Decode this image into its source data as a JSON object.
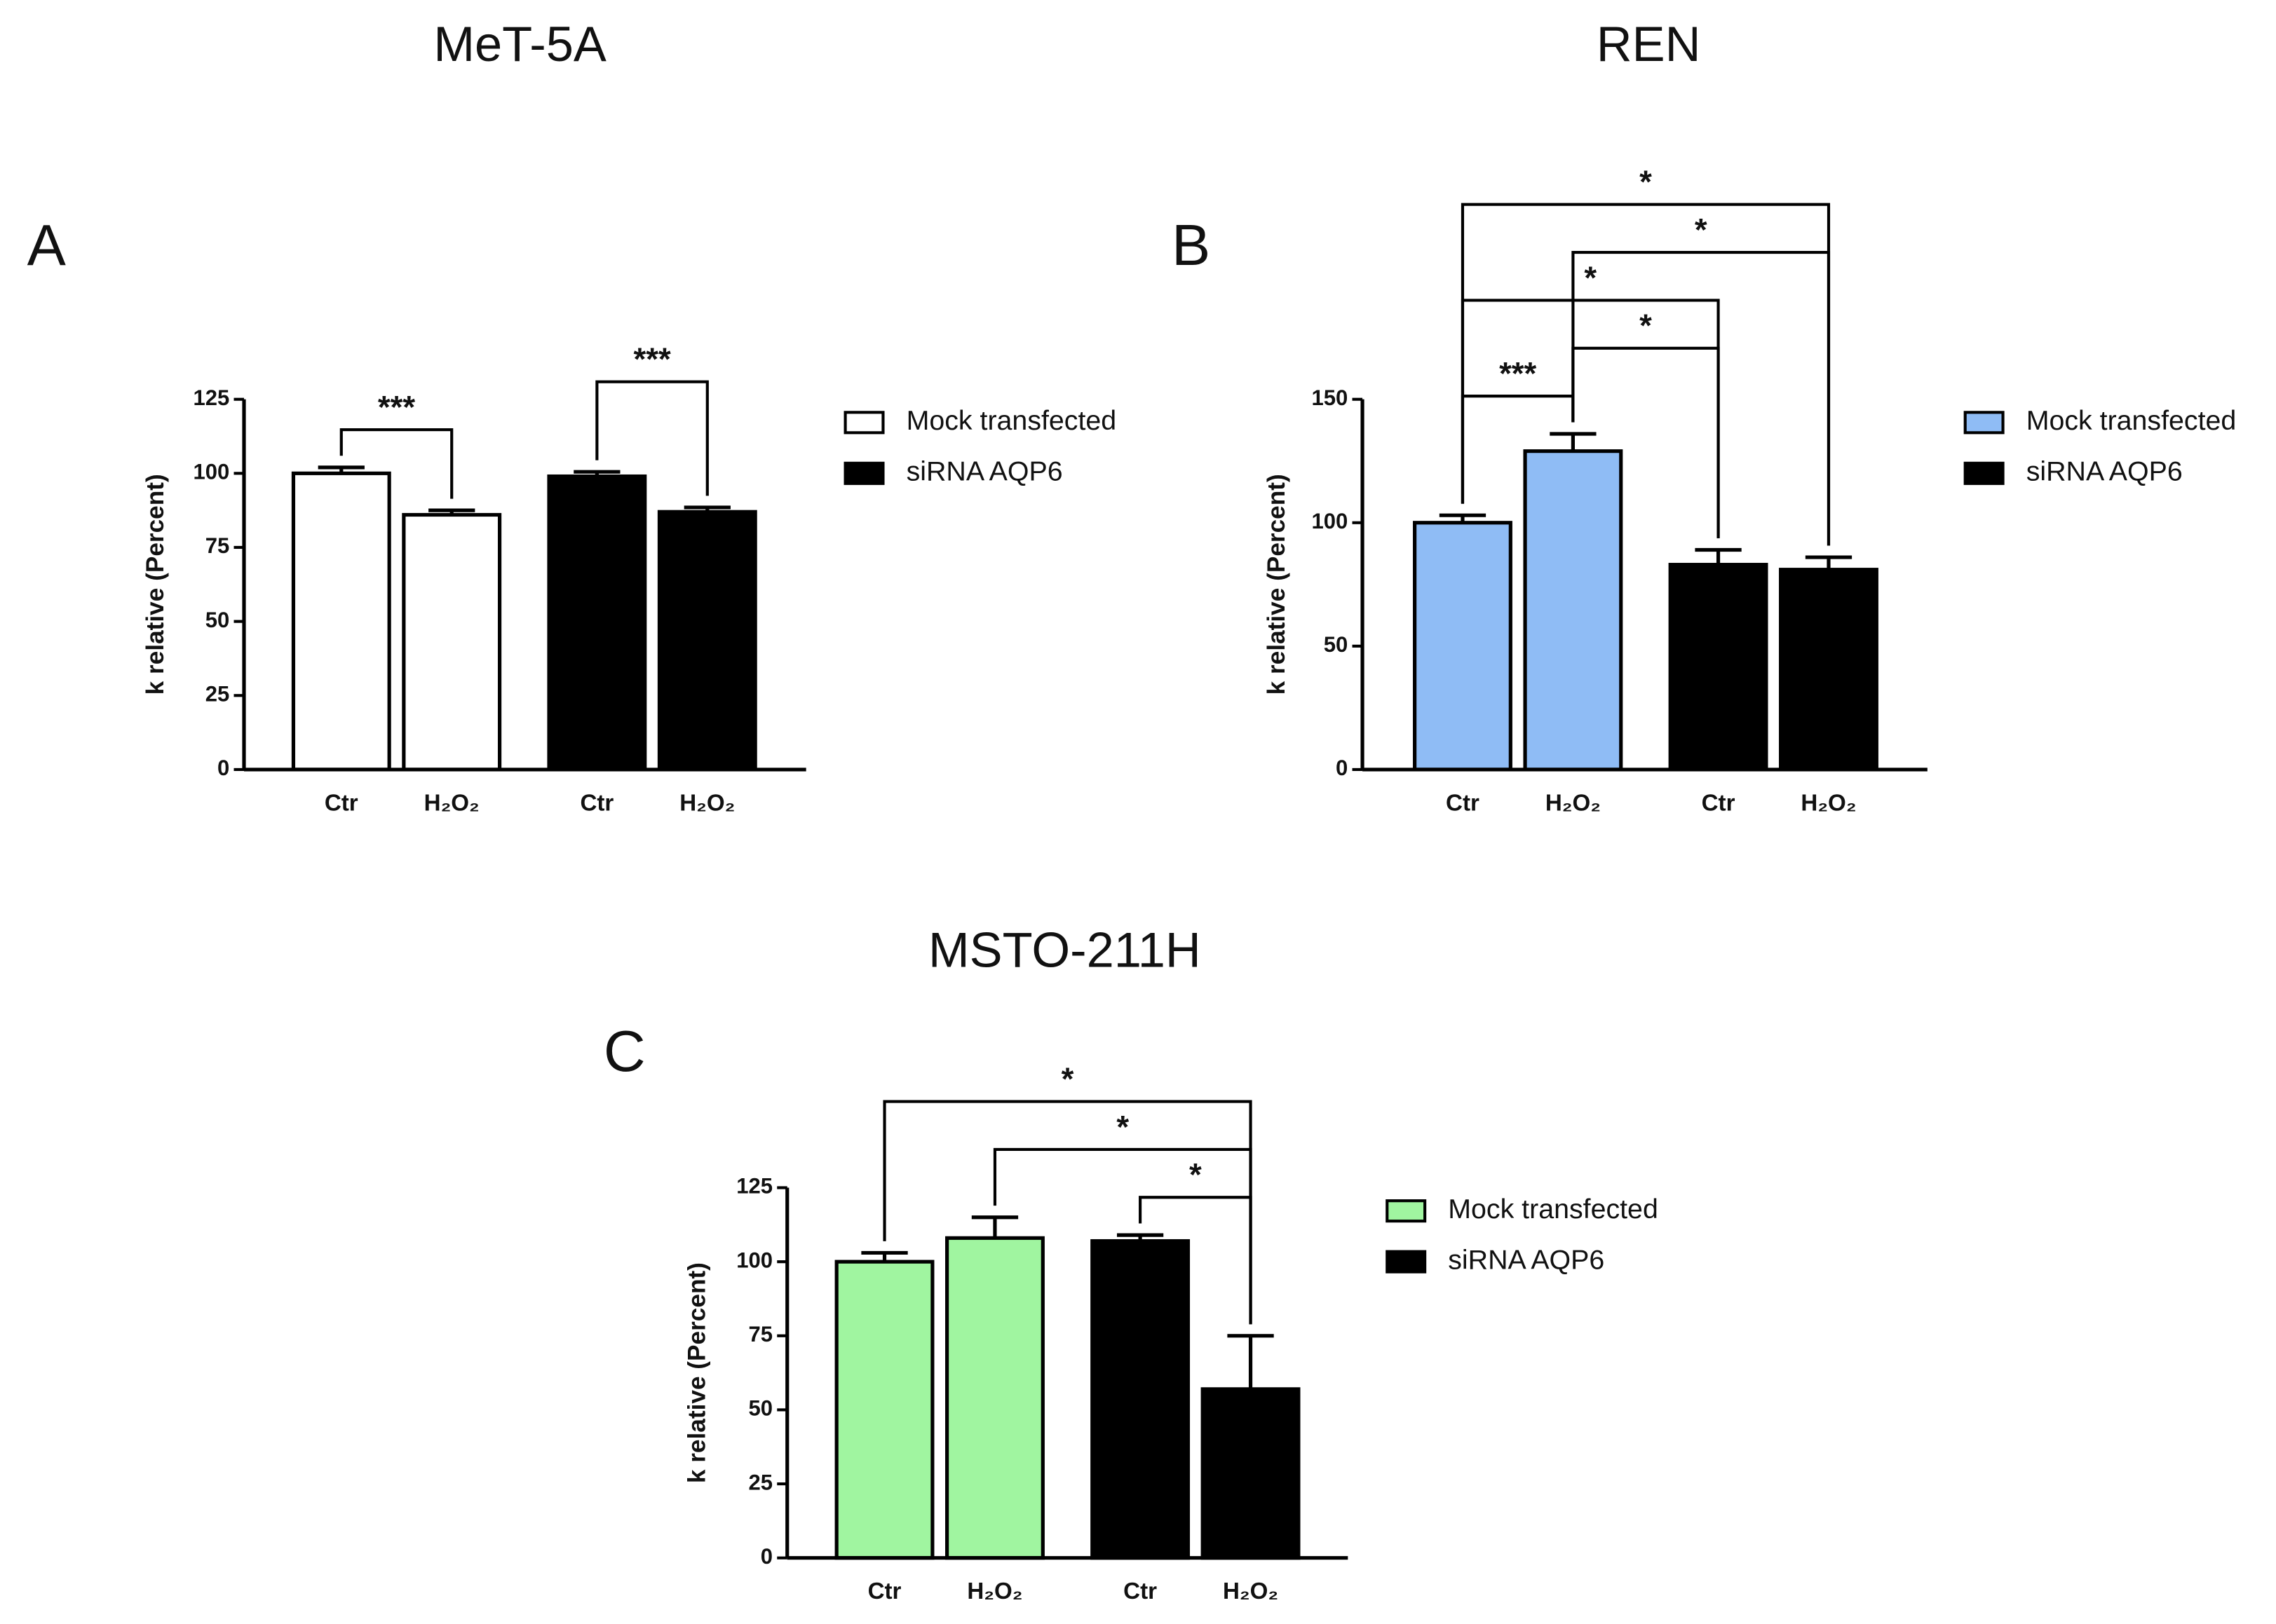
{
  "chart_data": [
    {
      "type": "bar",
      "title": "MeT-5A",
      "panel_label": "A",
      "ylabel": "k relative (Percent)",
      "categories": [
        "Ctr",
        "H₂O₂",
        "Ctr",
        "H₂O₂"
      ],
      "ylim": [
        0,
        125
      ],
      "yticks": [
        0,
        25,
        50,
        75,
        100,
        125
      ],
      "series": [
        {
          "name": "Mock transfected",
          "color": "#ffffff",
          "values": [
            100,
            86,
            null,
            null
          ],
          "errors": [
            2,
            1.5,
            null,
            null
          ]
        },
        {
          "name": "siRNA AQP6",
          "color": "#000000",
          "values": [
            null,
            null,
            99,
            87
          ],
          "errors": [
            null,
            null,
            1.5,
            1.5
          ]
        }
      ],
      "annotations": [
        {
          "from": 0,
          "to": 1,
          "label": "***"
        },
        {
          "from": 2,
          "to": 3,
          "label": "***"
        }
      ]
    },
    {
      "type": "bar",
      "title": "REN",
      "panel_label": "B",
      "ylabel": "k relative (Percent)",
      "categories": [
        "Ctr",
        "H₂O₂",
        "Ctr",
        "H₂O₂"
      ],
      "ylim": [
        0,
        150
      ],
      "yticks": [
        0,
        50,
        100,
        150
      ],
      "series": [
        {
          "name": "Mock transfected",
          "color": "#8fbcf5",
          "values": [
            100,
            129,
            null,
            null
          ],
          "errors": [
            3,
            7,
            null,
            null
          ]
        },
        {
          "name": "siRNA AQP6",
          "color": "#000000",
          "values": [
            null,
            null,
            83,
            81
          ],
          "errors": [
            null,
            null,
            6,
            5
          ]
        }
      ],
      "annotations": [
        {
          "from": 0,
          "to": 1,
          "label": "***"
        },
        {
          "from": 1,
          "to": 2,
          "label": "*"
        },
        {
          "from": 0,
          "to": 2,
          "label": "*"
        },
        {
          "from": 1,
          "to": 3,
          "label": "*"
        },
        {
          "from": 0,
          "to": 3,
          "label": "*"
        }
      ]
    },
    {
      "type": "bar",
      "title": "MSTO-211H",
      "panel_label": "C",
      "ylabel": "k relative (Percent)",
      "categories": [
        "Ctr",
        "H₂O₂",
        "Ctr",
        "H₂O₂"
      ],
      "ylim": [
        0,
        125
      ],
      "yticks": [
        0,
        25,
        50,
        75,
        100,
        125
      ],
      "series": [
        {
          "name": "Mock transfected",
          "color": "#a0f5a0",
          "values": [
            100,
            108,
            null,
            null
          ],
          "errors": [
            3,
            7,
            null,
            null
          ]
        },
        {
          "name": "siRNA AQP6",
          "color": "#000000",
          "values": [
            null,
            null,
            107,
            57
          ],
          "errors": [
            null,
            null,
            2,
            18
          ]
        }
      ],
      "annotations": [
        {
          "from": 2,
          "to": 3,
          "label": "*"
        },
        {
          "from": 1,
          "to": 3,
          "label": "*"
        },
        {
          "from": 0,
          "to": 3,
          "label": "*"
        }
      ]
    }
  ]
}
